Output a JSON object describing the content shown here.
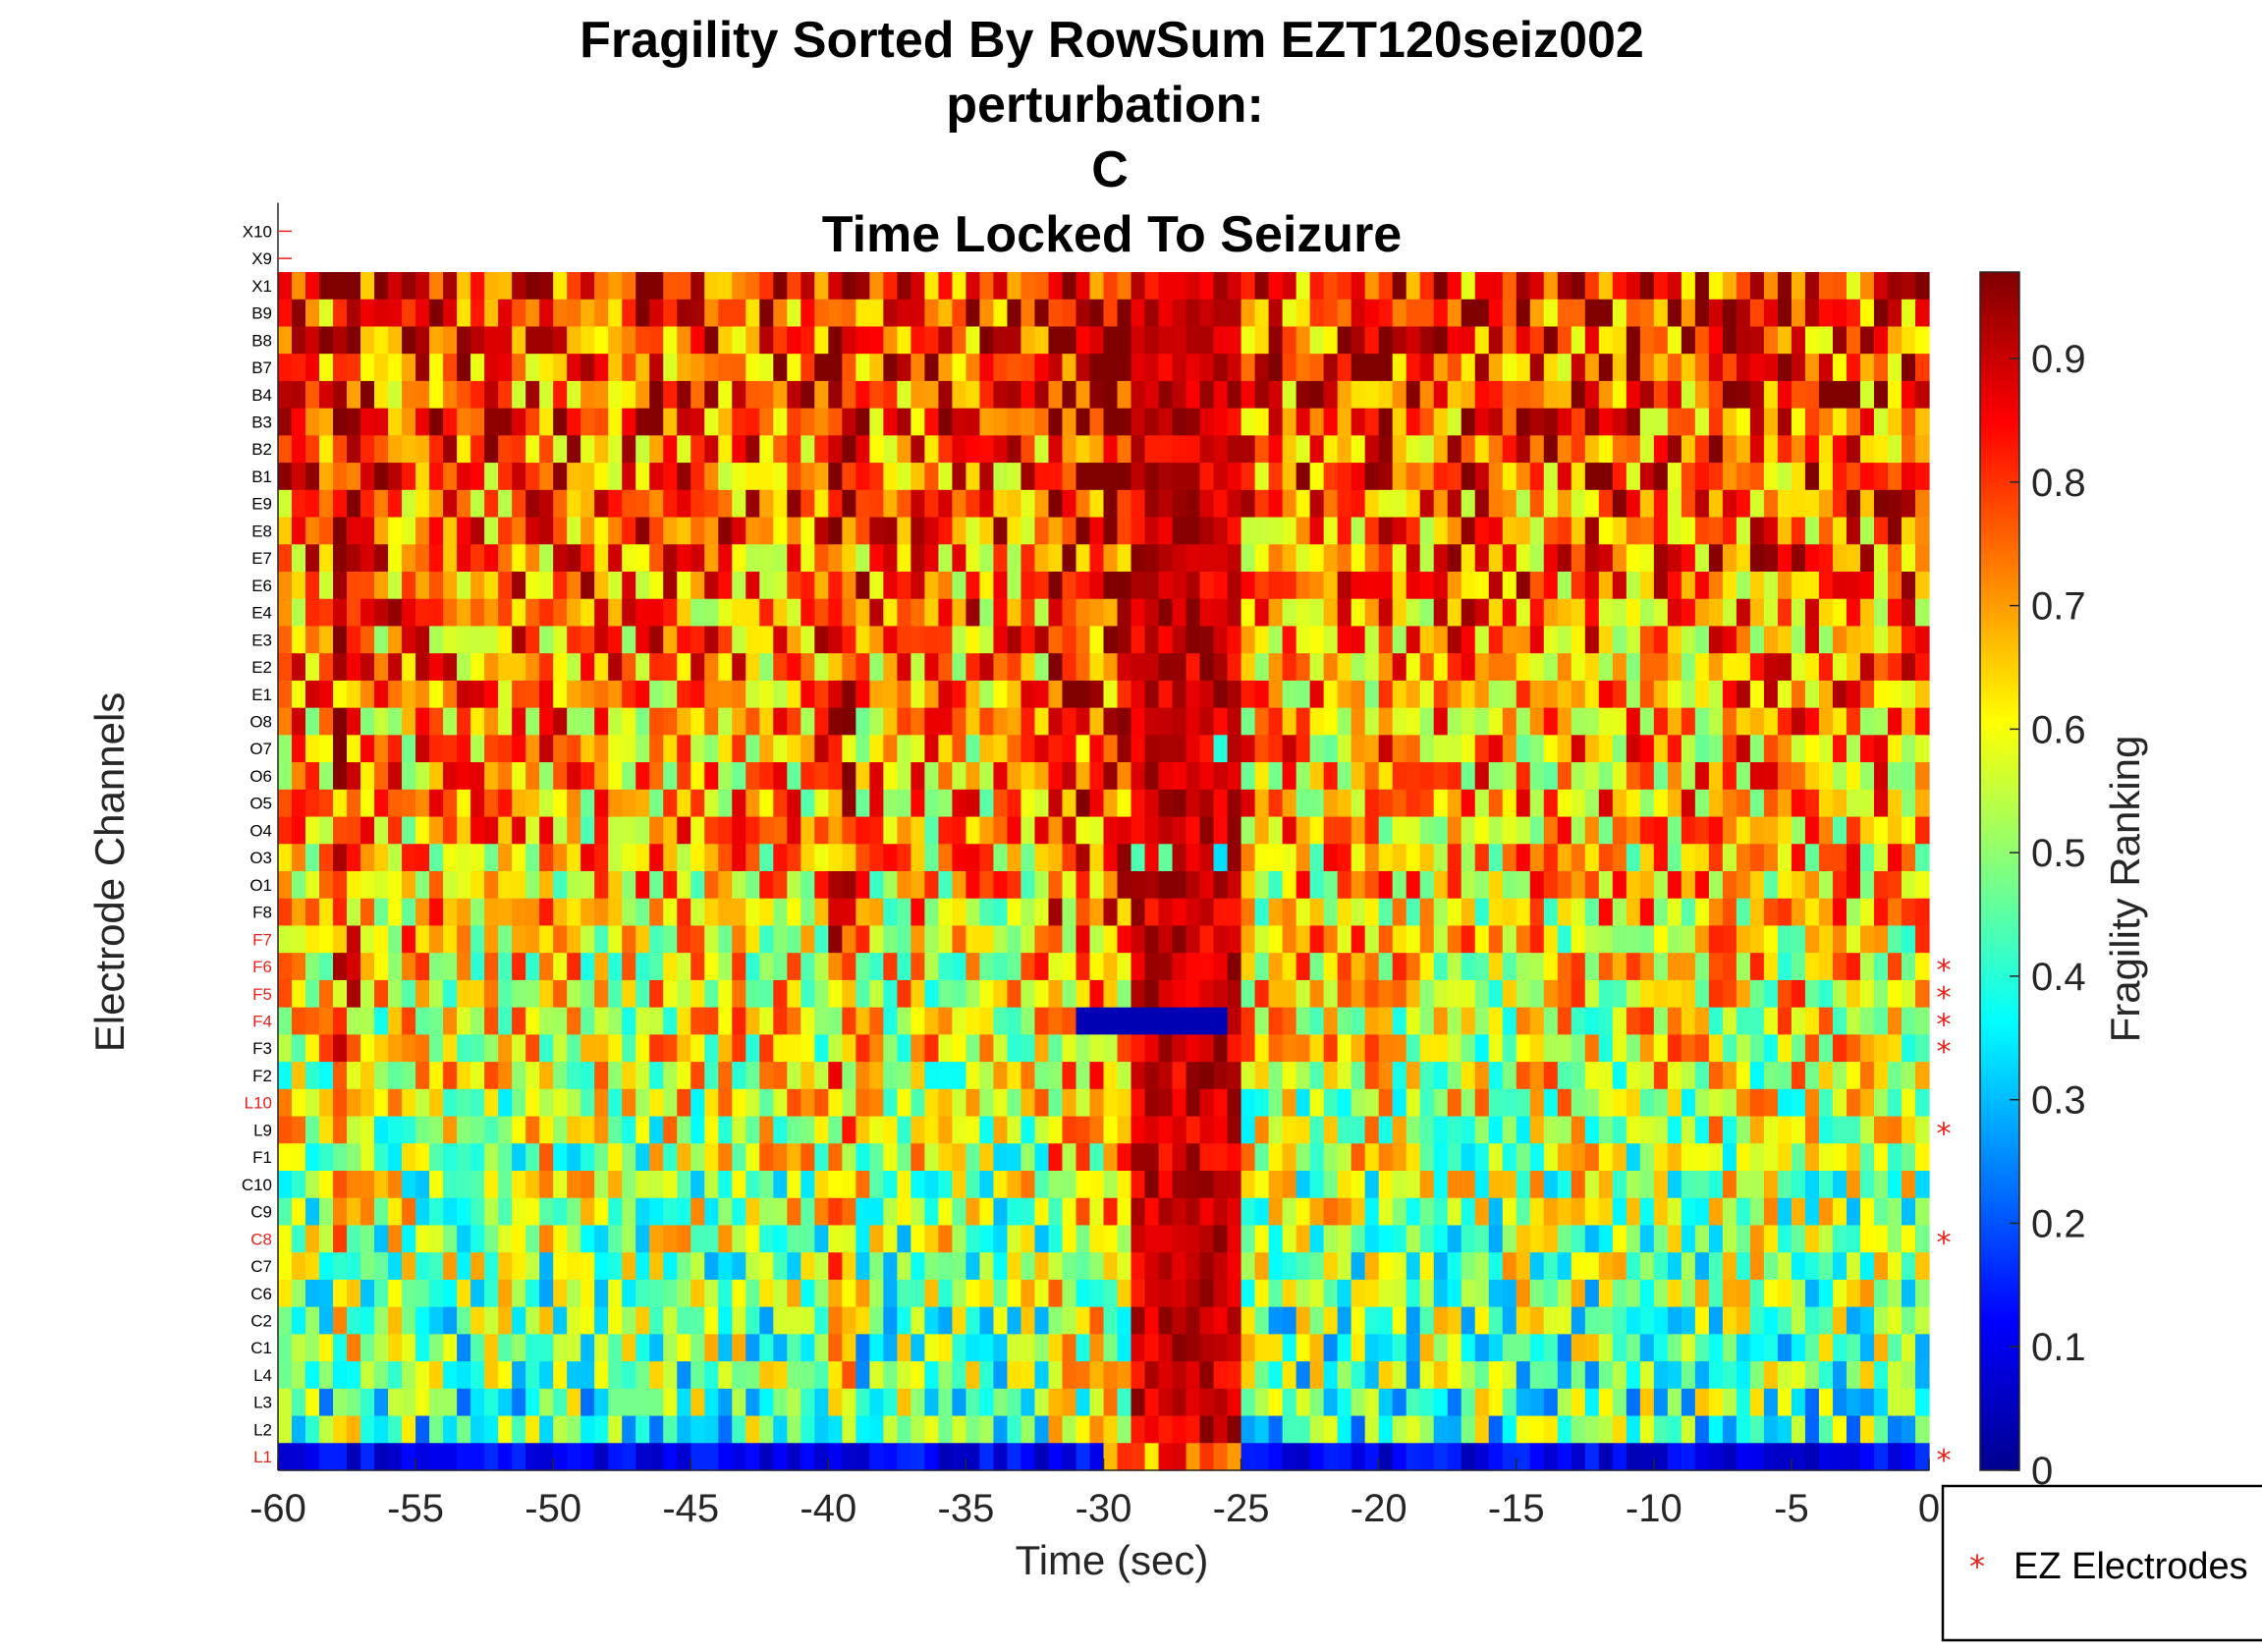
{
  "chart_data": {
    "type": "heatmap",
    "title": [
      "Fragility Sorted By RowSum EZT120seiz002",
      "perturbation:",
      "C",
      "Time Locked To Seizure"
    ],
    "xlabel": "Time (sec)",
    "ylabel": "Electrode Channels",
    "colorbar_label": "Fragility Ranking",
    "colormap": "jet",
    "xlim": [
      -60,
      0
    ],
    "x_ticks": [
      -60,
      -55,
      -50,
      -45,
      -40,
      -35,
      -30,
      -25,
      -20,
      -15,
      -10,
      -5,
      0
    ],
    "colorbar_range": [
      0,
      0.97
    ],
    "colorbar_ticks": [
      0,
      0.1,
      0.2,
      0.3,
      0.4,
      0.5,
      0.6,
      0.7,
      0.8,
      0.9
    ],
    "channels_top_to_bottom": [
      "X10",
      "X9",
      "X1",
      "B9",
      "B8",
      "B7",
      "B4",
      "B3",
      "B2",
      "B1",
      "E9",
      "E8",
      "E7",
      "E6",
      "E4",
      "E3",
      "E2",
      "E1",
      "O8",
      "O7",
      "O6",
      "O5",
      "O4",
      "O3",
      "O1",
      "F8",
      "F7",
      "F6",
      "F5",
      "F4",
      "F3",
      "F2",
      "L10",
      "L9",
      "F1",
      "C10",
      "C9",
      "C8",
      "C7",
      "C6",
      "C2",
      "C1",
      "L4",
      "L3",
      "L2",
      "L1"
    ],
    "heatmap_channels_top_to_bottom": [
      "X1",
      "B9",
      "B8",
      "B7",
      "B4",
      "B3",
      "B2",
      "B1",
      "E9",
      "E8",
      "E7",
      "E6",
      "E4",
      "E3",
      "E2",
      "E1",
      "O8",
      "O7",
      "O6",
      "O5",
      "O4",
      "O3",
      "O1",
      "F8",
      "F7",
      "F6",
      "F5",
      "F4",
      "F3",
      "F2",
      "L10",
      "L9",
      "F1",
      "C10",
      "C9",
      "C8",
      "C7",
      "C6",
      "C2",
      "C1",
      "L4",
      "L3",
      "L2",
      "L1"
    ],
    "ez_channels": [
      "F7",
      "F6",
      "F5",
      "F4",
      "L10",
      "C8",
      "L1"
    ],
    "ez_star_channels": [
      "F6",
      "F5",
      "F4",
      "F3",
      "L9",
      "C8",
      "L1"
    ],
    "seizure_high_fragility_window_sec": [
      -29,
      -25
    ],
    "legend": {
      "entries": [
        "EZ Electrodes"
      ],
      "position": "bottom-right",
      "marker": "*"
    },
    "colors": {
      "ez_label": "#e8211b",
      "normal_label": "#000000",
      "star": "#e8211b"
    }
  }
}
